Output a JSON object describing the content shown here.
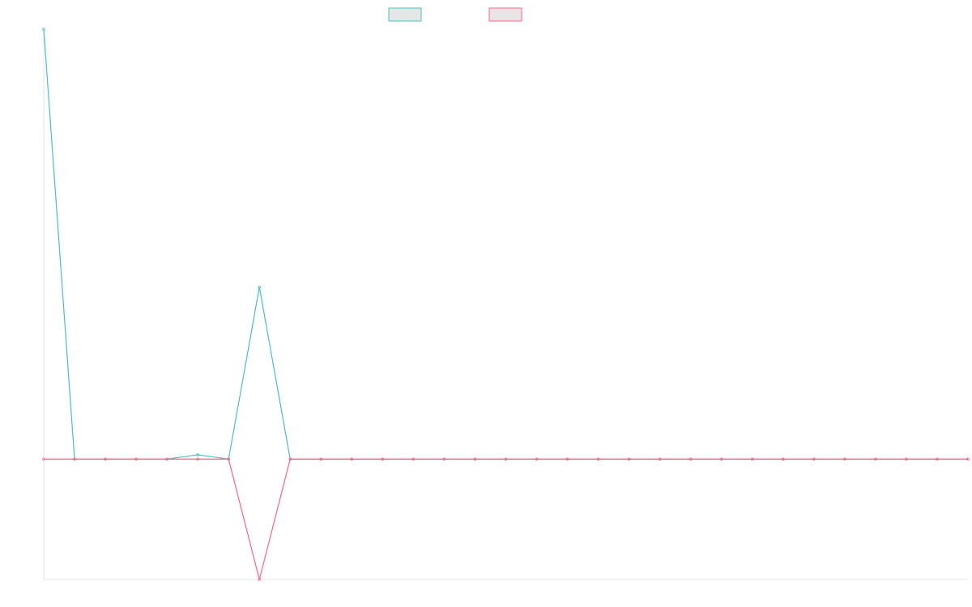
{
  "chart_data": {
    "type": "line",
    "title": "",
    "xlabel": "",
    "ylabel": "",
    "grid": false,
    "legend_placement": "top-center",
    "x": [
      0,
      1,
      2,
      3,
      4,
      5,
      6,
      7,
      8,
      9,
      10,
      11,
      12,
      13,
      14,
      15,
      16,
      17,
      18,
      19,
      20,
      21,
      22,
      23,
      24,
      25,
      26,
      27,
      28,
      29,
      30
    ],
    "ylim": [
      -0.28,
      1.0
    ],
    "series": [
      {
        "name": "",
        "color": "#4BC0C0",
        "values": [
          1.0,
          0.0,
          0.0,
          0.0,
          0.0,
          0.01,
          0.0,
          0.4,
          0.0,
          0.0,
          0.0,
          0.0,
          0.0,
          0.0,
          0.0,
          0.0,
          0.0,
          0.0,
          0.0,
          0.0,
          0.0,
          0.0,
          0.0,
          0.0,
          0.0,
          0.0,
          0.0,
          0.0,
          0.0,
          0.0,
          0.0
        ]
      },
      {
        "name": "",
        "color": "#FF6384",
        "values": [
          0.0,
          0.0,
          0.0,
          0.0,
          0.0,
          0.0,
          0.0,
          -0.28,
          0.0,
          0.0,
          0.0,
          0.0,
          0.0,
          0.0,
          0.0,
          0.0,
          0.0,
          0.0,
          0.0,
          0.0,
          0.0,
          0.0,
          0.0,
          0.0,
          0.0,
          0.0,
          0.0,
          0.0,
          0.0,
          0.0,
          0.0
        ]
      }
    ]
  }
}
